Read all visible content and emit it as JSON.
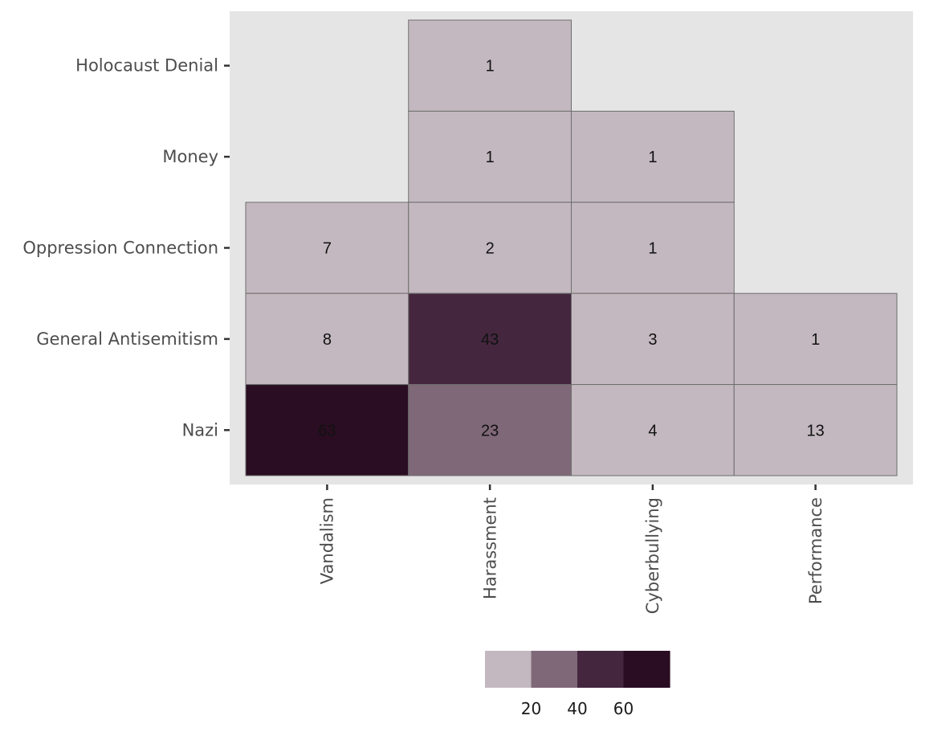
{
  "chart_data": {
    "type": "heatmap",
    "title": "",
    "xlabel": "",
    "ylabel": "",
    "x_categories": [
      "Vandalism",
      "Harassment",
      "Cyberbullying",
      "Performance"
    ],
    "y_categories": [
      "Holocaust Denial",
      "Money",
      "Oppression Connection",
      "General Antisemitism",
      "Nazi"
    ],
    "cells": [
      {
        "x": "Harassment",
        "y": "Holocaust Denial",
        "value": 1
      },
      {
        "x": "Harassment",
        "y": "Money",
        "value": 1
      },
      {
        "x": "Cyberbullying",
        "y": "Money",
        "value": 1
      },
      {
        "x": "Vandalism",
        "y": "Oppression Connection",
        "value": 7
      },
      {
        "x": "Harassment",
        "y": "Oppression Connection",
        "value": 2
      },
      {
        "x": "Cyberbullying",
        "y": "Oppression Connection",
        "value": 1
      },
      {
        "x": "Vandalism",
        "y": "General Antisemitism",
        "value": 8
      },
      {
        "x": "Harassment",
        "y": "General Antisemitism",
        "value": 43
      },
      {
        "x": "Cyberbullying",
        "y": "General Antisemitism",
        "value": 3
      },
      {
        "x": "Performance",
        "y": "General Antisemitism",
        "value": 1
      },
      {
        "x": "Vandalism",
        "y": "Nazi",
        "value": 63
      },
      {
        "x": "Harassment",
        "y": "Nazi",
        "value": 23
      },
      {
        "x": "Cyberbullying",
        "y": "Nazi",
        "value": 4
      },
      {
        "x": "Performance",
        "y": "Nazi",
        "value": 13
      }
    ],
    "legend": {
      "placement": "bottom",
      "breaks": [
        20,
        40,
        60
      ],
      "bins": [
        {
          "min": 0,
          "max": 20,
          "color": "#c3b8bf"
        },
        {
          "min": 20,
          "max": 40,
          "color": "#7f6878"
        },
        {
          "min": 40,
          "max": 60,
          "color": "#44273e"
        },
        {
          "min": 60,
          "max": 80,
          "color": "#2a0d22"
        }
      ]
    },
    "grid": false,
    "colors": {
      "panel_background": "#e5e5e5",
      "cell_border": "#6e6e6e",
      "tick_color": "#333333"
    }
  }
}
